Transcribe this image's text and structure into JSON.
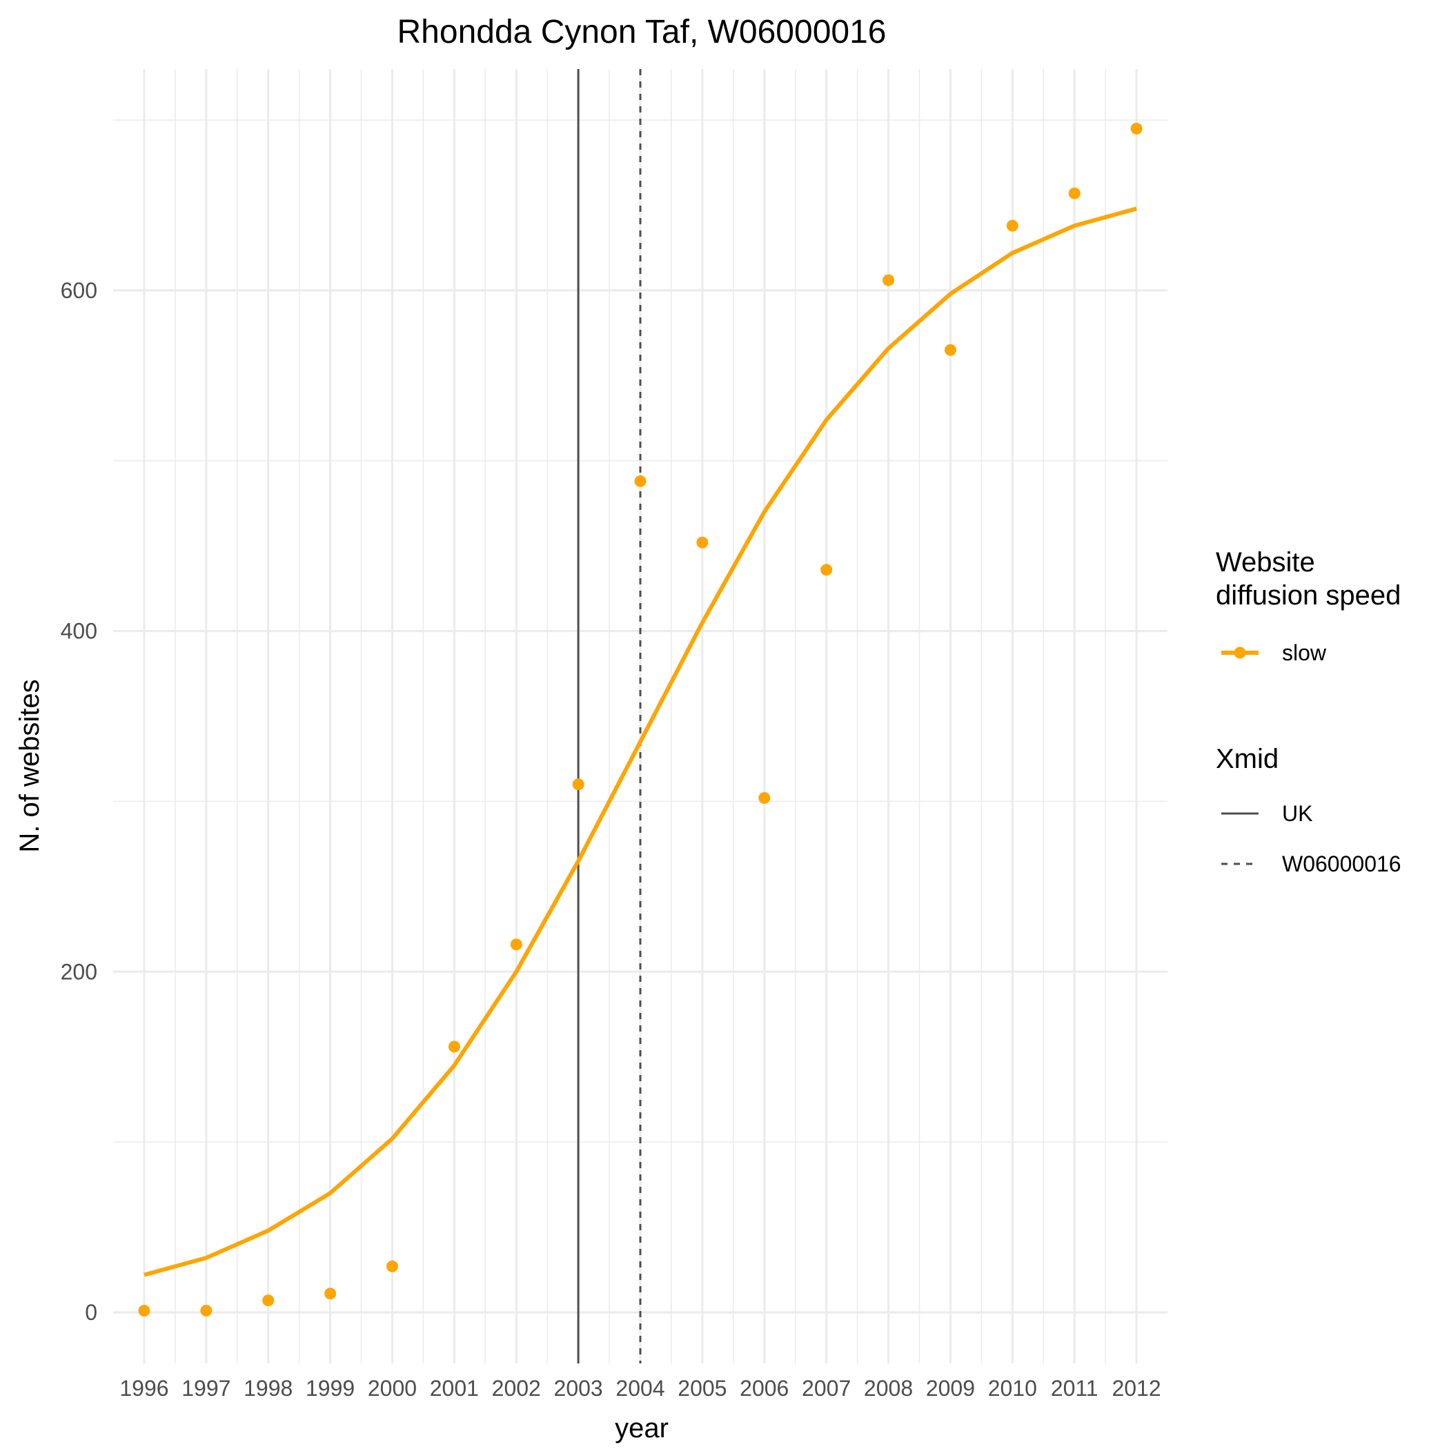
{
  "chart_data": {
    "type": "line",
    "title": "Rhondda Cynon Taf, W06000016",
    "xlabel": "year",
    "ylabel": "N. of websites",
    "x": [
      1996,
      1997,
      1998,
      1999,
      2000,
      2001,
      2002,
      2003,
      2004,
      2005,
      2006,
      2007,
      2008,
      2009,
      2010,
      2011,
      2012
    ],
    "x_tick_labels": [
      "1996",
      "1997",
      "1998",
      "1999",
      "2000",
      "2001",
      "2002",
      "2003",
      "2004",
      "2005",
      "2006",
      "2007",
      "2008",
      "2009",
      "2010",
      "2011",
      "2012"
    ],
    "y_ticks": [
      0,
      200,
      400,
      600
    ],
    "y_tick_labels": [
      "0",
      "200",
      "400",
      "600"
    ],
    "xlim": [
      1995.5,
      2012.5
    ],
    "ylim": [
      -30,
      730
    ],
    "grid": true,
    "legend_position": "right",
    "series": [
      {
        "name": "slow",
        "color": "#FFA500",
        "points": [
          1,
          1,
          7,
          11,
          27,
          156,
          216,
          310,
          488,
          452,
          302,
          436,
          606,
          565,
          638,
          657,
          695
        ],
        "fitted": [
          22,
          32,
          48,
          70,
          102,
          145,
          200,
          265,
          335,
          405,
          470,
          524,
          566,
          598,
          622,
          638,
          648
        ]
      }
    ],
    "reference_lines": [
      {
        "name": "UK",
        "x": 2003,
        "style": "solid",
        "color": "#4d4d4d"
      },
      {
        "name": "W06000016",
        "x": 2004,
        "style": "dashed",
        "color": "#4d4d4d"
      }
    ],
    "legends": [
      {
        "title": "Website\ndiffusion speed",
        "entries": [
          {
            "label": "slow",
            "kind": "line-point",
            "color": "#FFA500"
          }
        ]
      },
      {
        "title": "Xmid",
        "entries": [
          {
            "label": "UK",
            "kind": "line-solid"
          },
          {
            "label": "W06000016",
            "kind": "line-dashed"
          }
        ]
      }
    ]
  }
}
